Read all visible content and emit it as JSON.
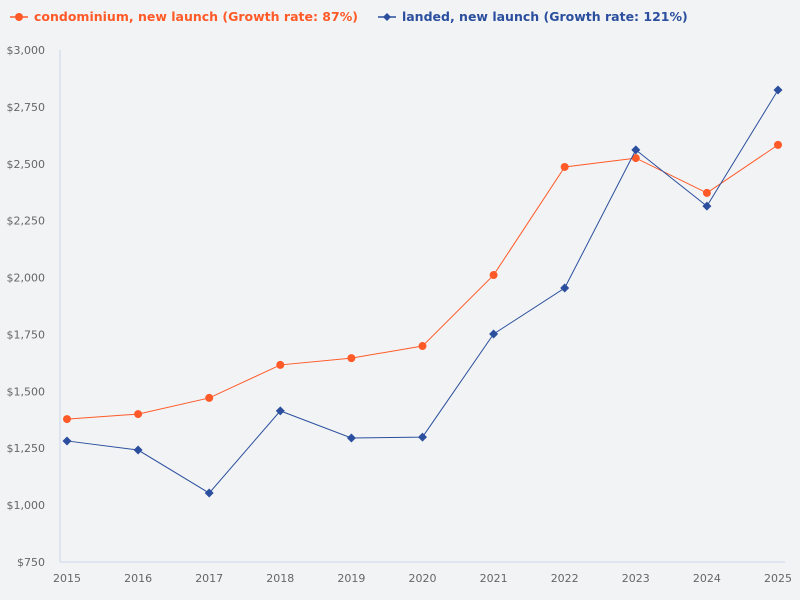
{
  "chart_data": {
    "type": "line",
    "x": [
      "2015",
      "2016",
      "2017",
      "2018",
      "2019",
      "2020",
      "2021",
      "2022",
      "2023",
      "2024",
      "2025"
    ],
    "series": [
      {
        "name": "condominium, new launch (Growth rate: 87%)",
        "color": "#ff5a28",
        "marker": "circle",
        "values": [
          1378,
          1400,
          1471,
          1616,
          1646,
          1699,
          2011,
          2486,
          2525,
          2372,
          2583
        ]
      },
      {
        "name": "landed, new launch (Growth rate: 121%)",
        "color": "#2b4f9e",
        "marker": "diamond",
        "values": [
          1282,
          1242,
          1053,
          1414,
          1295,
          1299,
          1752,
          1954,
          2561,
          2314,
          2824
        ]
      }
    ],
    "ylim": [
      750,
      3000
    ],
    "yticks": [
      750,
      1000,
      1250,
      1500,
      1750,
      2000,
      2250,
      2500,
      2750,
      3000
    ],
    "ytick_labels": [
      "$750",
      "$1,000",
      "$1,250",
      "$1,500",
      "$1,750",
      "$2,000",
      "$2,250",
      "$2,500",
      "$2,750",
      "$3,000"
    ],
    "grid": false,
    "legend_position": "top-left",
    "title": "",
    "xlabel": "",
    "ylabel": ""
  }
}
